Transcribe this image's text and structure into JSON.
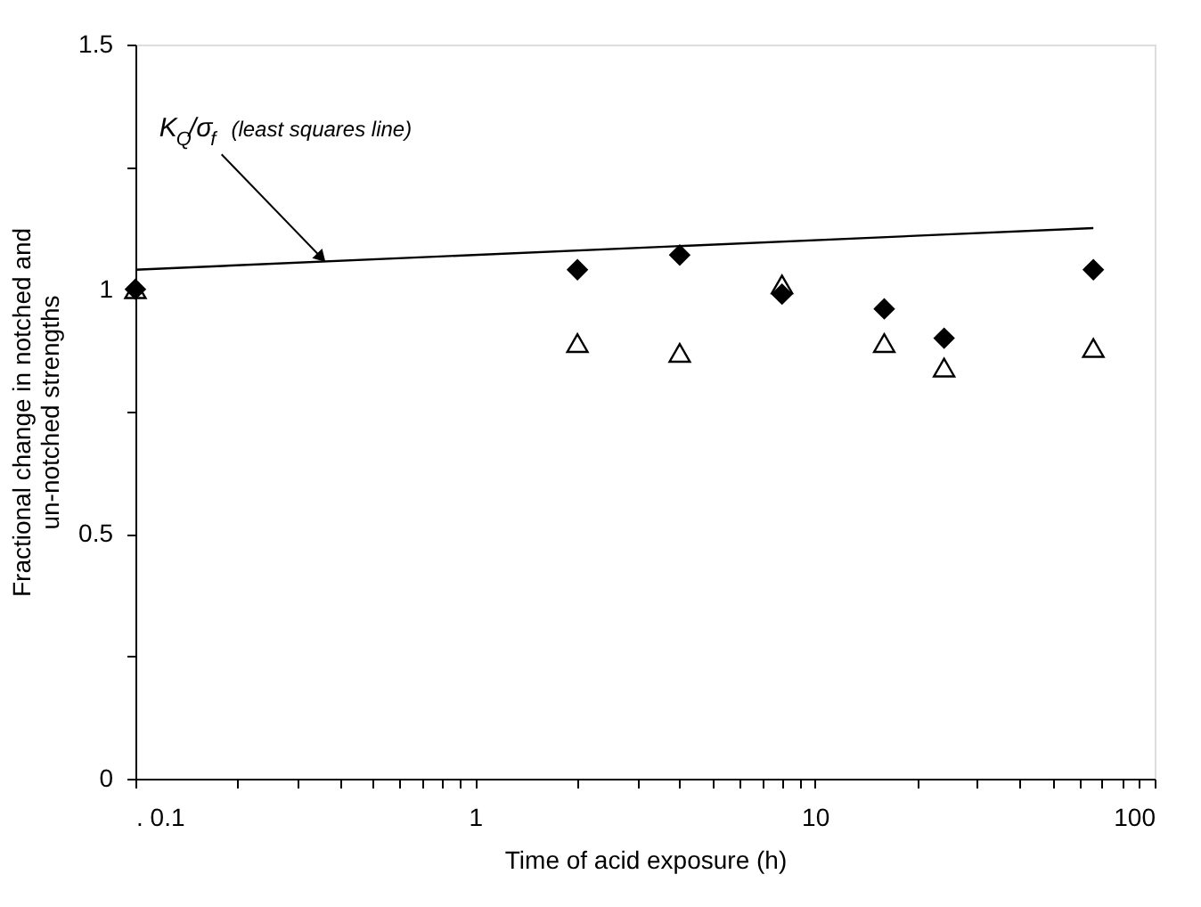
{
  "chart_data": {
    "type": "scatter",
    "xlabel": "Time of acid exposure  (h)",
    "ylabel": "Fractional change in notched and un-notched strengths",
    "log": "x",
    "grid": false,
    "xlim": [
      0.1,
      100
    ],
    "xticks": [
      {
        "value": 0.1,
        "label": ". 0.1"
      },
      {
        "value": 0.2,
        "label": null
      },
      {
        "value": 0.3,
        "label": null
      },
      {
        "value": 0.4,
        "label": null
      },
      {
        "value": 0.5,
        "label": null
      },
      {
        "value": 0.6,
        "label": null
      },
      {
        "value": 0.7,
        "label": null
      },
      {
        "value": 0.8,
        "label": null
      },
      {
        "value": 0.9,
        "label": null
      },
      1,
      {
        "value": 2,
        "label": null
      },
      {
        "value": 3,
        "label": null
      },
      {
        "value": 4,
        "label": null
      },
      {
        "value": 5,
        "label": null
      },
      {
        "value": 6,
        "label": null
      },
      {
        "value": 7,
        "label": null
      },
      {
        "value": 8,
        "label": null
      },
      {
        "value": 9,
        "label": null
      },
      10,
      {
        "value": 20,
        "label": null
      },
      {
        "value": 30,
        "label": null
      },
      {
        "value": 40,
        "label": null
      },
      {
        "value": 50,
        "label": null
      },
      {
        "value": 60,
        "label": null
      },
      {
        "value": 70,
        "label": null
      },
      {
        "value": 80,
        "label": null
      },
      {
        "value": 90,
        "label": null
      },
      100
    ],
    "ylim": [
      0,
      1.5
    ],
    "yticks": [
      0,
      {
        "value": 0.25,
        "label": null
      },
      0.5,
      {
        "value": 0.75,
        "label": null
      },
      1,
      {
        "value": 1.25,
        "label": null
      },
      1.5
    ],
    "series": [
      {
        "marker": "diamond",
        "color": "#000000",
        "x": [
          0.1,
          2,
          4,
          8,
          16,
          24,
          66
        ],
        "values": [
          1.0,
          1.04,
          1.07,
          0.99,
          0.96,
          0.9,
          1.04
        ]
      },
      {
        "marker": "triangle",
        "color": "#000000",
        "x": [
          0.1,
          2,
          4,
          8,
          16,
          24,
          66
        ],
        "values": [
          1.0,
          0.89,
          0.87,
          1.01,
          0.89,
          0.84,
          0.88
        ]
      },
      {
        "type": "line",
        "marker": "none",
        "line_style": "solid",
        "color": "#000000",
        "x": [
          0.1,
          66
        ],
        "values": [
          1.04,
          1.125
        ]
      }
    ],
    "annotations": [
      {
        "text": "K$_{Q}$/σ$_{f}$  (least squares line)",
        "x": 0.37,
        "y": 1.05
      }
    ]
  }
}
